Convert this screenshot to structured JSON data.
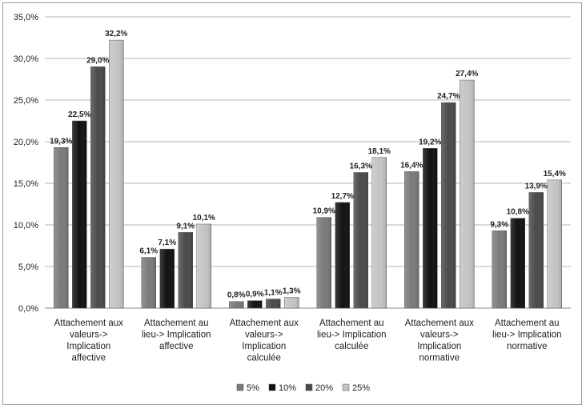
{
  "chart_data": {
    "type": "bar",
    "categories": [
      [
        "Attachement aux",
        "valeurs->",
        "Implication",
        "affective"
      ],
      [
        "Attachement au",
        "lieu-> Implication",
        "affective"
      ],
      [
        "Attachement aux",
        "valeurs->",
        "Implication",
        "calculée"
      ],
      [
        "Attachement au",
        "lieu-> Implication",
        "calculée"
      ],
      [
        "Attachement aux",
        "valeurs->",
        "Implication",
        "normative"
      ],
      [
        "Attachement au",
        "lieu-> Implication",
        "normative"
      ]
    ],
    "series": [
      {
        "name": "5%",
        "color": "#7a7a7a",
        "values": [
          19.3,
          6.1,
          0.8,
          10.9,
          16.4,
          9.3
        ],
        "labels": [
          "19,3%",
          "6,1%",
          "0,8%",
          "10,9%",
          "16,4%",
          "9,3%"
        ]
      },
      {
        "name": "10%",
        "color": "#111111",
        "values": [
          22.5,
          7.1,
          0.9,
          12.7,
          19.2,
          10.8
        ],
        "labels": [
          "22,5%",
          "7,1%",
          "0,9%",
          "12,7%",
          "19,2%",
          "10,8%"
        ]
      },
      {
        "name": "20%",
        "color": "#4a4a4a",
        "values": [
          29.0,
          9.1,
          1.1,
          16.3,
          24.7,
          13.9
        ],
        "labels": [
          "29,0%",
          "9,1%",
          "1,1%",
          "16,3%",
          "24,7%",
          "13,9%"
        ]
      },
      {
        "name": "25%",
        "color": "#c4c4c4",
        "values": [
          32.2,
          10.1,
          1.3,
          18.1,
          27.4,
          15.4
        ],
        "labels": [
          "32,2%",
          "10,1%",
          "1,3%",
          "18,1%",
          "27,4%",
          "15,4%"
        ]
      }
    ],
    "yticks": [
      0,
      5,
      10,
      15,
      20,
      25,
      30,
      35
    ],
    "ytick_labels": [
      "0,0%",
      "5,0%",
      "10,0%",
      "15,0%",
      "20,0%",
      "25,0%",
      "30,0%",
      "35,0%"
    ],
    "ylim": [
      0,
      35
    ],
    "grid": true,
    "legend_position": "bottom"
  }
}
